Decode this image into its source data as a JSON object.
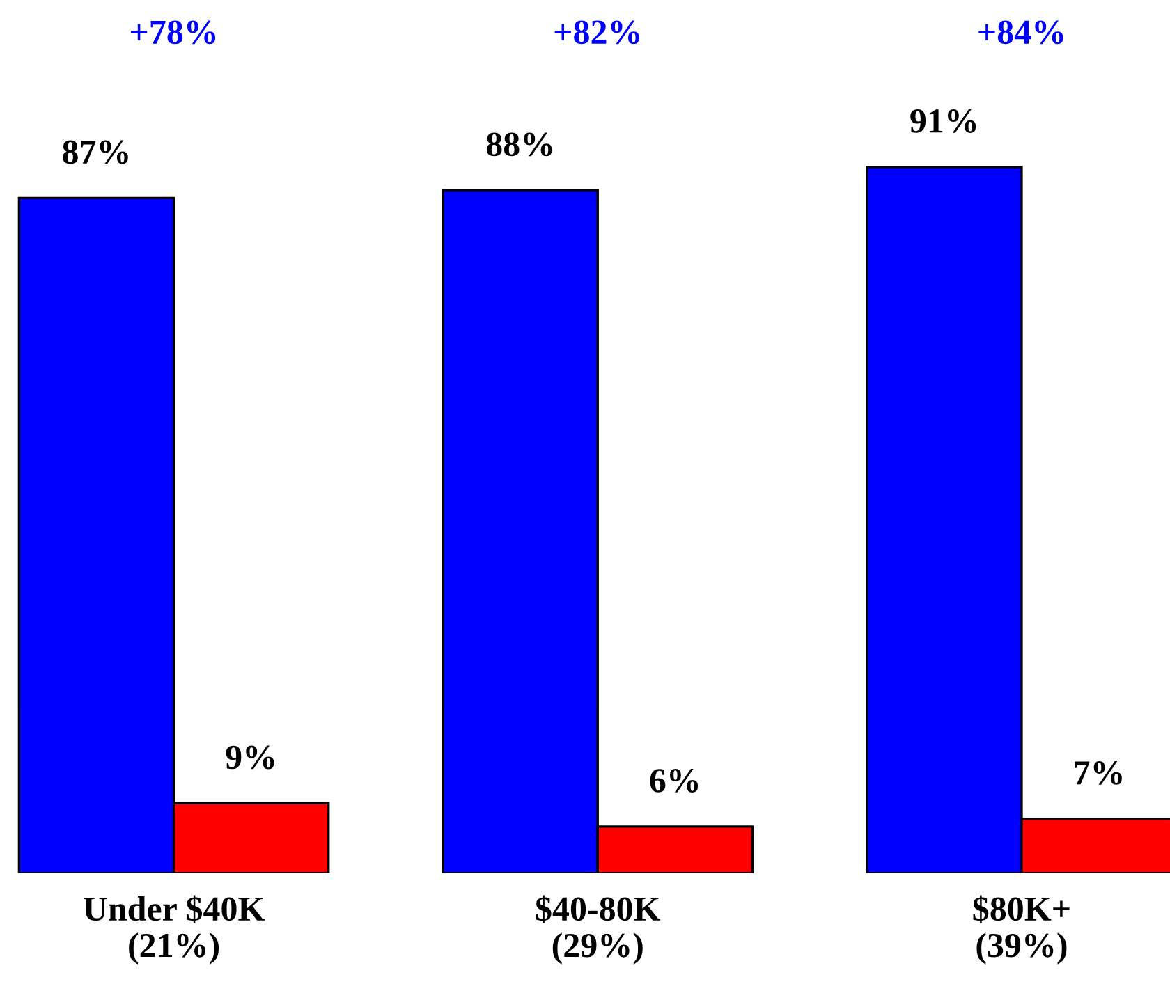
{
  "chart_data": {
    "type": "bar",
    "categories": [
      "Under $40K\n(21%)",
      "$40-80K\n(29%)",
      "$80K+\n(39%)"
    ],
    "series": [
      {
        "color": "#0000ff",
        "values": [
          87,
          88,
          91
        ],
        "value_labels": [
          "87%",
          "88%",
          "91%"
        ]
      },
      {
        "color": "#ff0000",
        "values": [
          9,
          6,
          7
        ],
        "value_labels": [
          "9%",
          "6%",
          "7%"
        ]
      }
    ],
    "annotations": [
      "+78%",
      "+82%",
      "+84%"
    ],
    "grid": false,
    "legend": false
  }
}
